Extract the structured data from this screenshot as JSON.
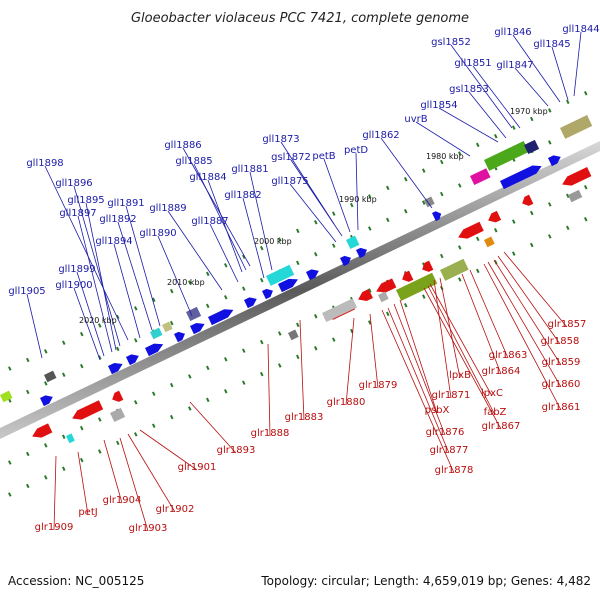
{
  "title": "Gloeobacter violaceus PCC 7421, complete genome",
  "footer": {
    "accession": "Accession: NC_005125",
    "summary": "Topology: circular; Length: 4,659,019 bp; Genes: 4,482"
  },
  "kbp_labels": [
    "1970 kbp",
    "1980 kbp",
    "1990 kbp",
    "2000 kbp",
    "2010 kbp",
    "2020 kbp"
  ],
  "upper_labels": [
    "gll1844",
    "gll1845",
    "gll1846",
    "gsl1852",
    "gll1847",
    "gll1851",
    "gsl1853",
    "gll1854",
    "uvrB",
    "gll1862",
    "gll1873",
    "petD",
    "petB",
    "gsl1872",
    "gll1875",
    "gll1886",
    "gll1885",
    "gll1881",
    "gll1884",
    "gll1882",
    "gll1887",
    "gll1889",
    "gll1898",
    "gll1896",
    "gll1895",
    "gll1897",
    "gll1891",
    "gll1892",
    "gll1890",
    "gll1894",
    "gll1899",
    "gll1900",
    "gll1905"
  ],
  "lower_labels": [
    "glr1857",
    "glr1858",
    "glr1859",
    "glr1860",
    "glr1861",
    "glr1863",
    "glr1864",
    "lpxB",
    "glr1871",
    "lpxC",
    "fabZ",
    "glr1867",
    "psbX",
    "glr1876",
    "glr1877",
    "glr1878",
    "glr1879",
    "glr1880",
    "glr1883",
    "glr1888",
    "glr1893",
    "glr1901",
    "glr1902",
    "glr1903",
    "glr1904",
    "petJ",
    "glr1909"
  ],
  "colors": {
    "forward_gene": "#1010e0",
    "reverse_gene": "#e01010",
    "backbone": "#808080",
    "tick_mark": "#2a7a2a",
    "label_blue": "#1a1aa8",
    "label_red": "#b80f0f"
  }
}
